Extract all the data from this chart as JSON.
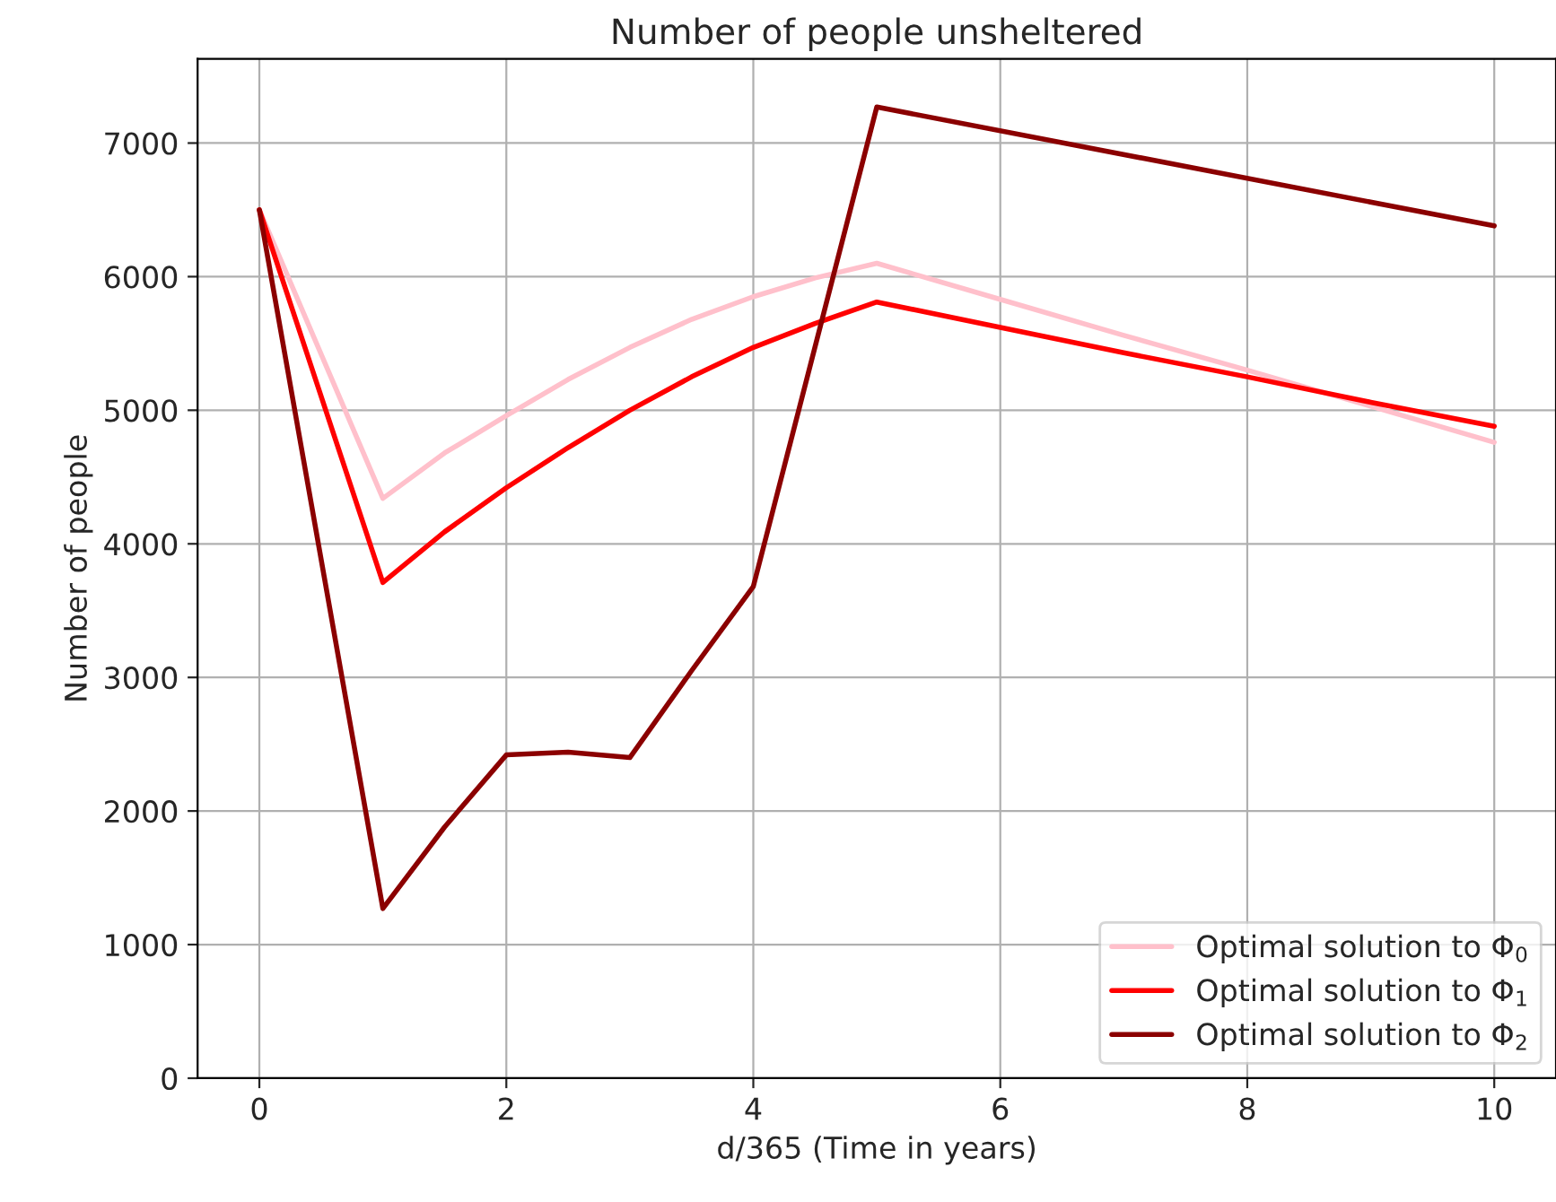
{
  "chart_data": {
    "type": "line",
    "title": "Number of people unsheltered",
    "xlabel": "d/365 (Time in years)",
    "ylabel": "Number of people",
    "xlim": [
      -0.5,
      10.5
    ],
    "xticks": [
      0,
      2,
      4,
      6,
      8,
      10
    ],
    "ylim": [
      0,
      7630
    ],
    "yticks": [
      0,
      1000,
      2000,
      3000,
      4000,
      5000,
      6000,
      7000
    ],
    "grid": true,
    "legend": "bottom right",
    "line_style": "solid",
    "marker": "none",
    "series": [
      {
        "name": "Optimal solution to Φ$_{0}$",
        "color": "#ffc0cb",
        "x": [
          0,
          1,
          1.5,
          2,
          2.5,
          3,
          3.5,
          4,
          4.5,
          5,
          6,
          7,
          8,
          9,
          10
        ],
        "values": [
          6500,
          4340,
          4680,
          4960,
          5230,
          5470,
          5680,
          5850,
          5990,
          6100,
          5830,
          5560,
          5300,
          5030,
          4760
        ]
      },
      {
        "name": "Optimal solution to Φ$_{1}$",
        "color": "#ff0000",
        "x": [
          0,
          1,
          1.5,
          2,
          2.5,
          3,
          3.5,
          4,
          4.5,
          5,
          6,
          7,
          8,
          9,
          10
        ],
        "values": [
          6500,
          3710,
          4090,
          4420,
          4720,
          5000,
          5250,
          5470,
          5650,
          5810,
          5620,
          5430,
          5250,
          5060,
          4880
        ]
      },
      {
        "name": "Optimal solution to Φ$_{2}$",
        "color": "#8b0000",
        "x": [
          0,
          1,
          1.5,
          2,
          2.5,
          3,
          3.5,
          4,
          5,
          10
        ],
        "values": [
          6500,
          1270,
          1880,
          2420,
          2440,
          2400,
          3050,
          3680,
          7270,
          6380
        ]
      }
    ]
  }
}
